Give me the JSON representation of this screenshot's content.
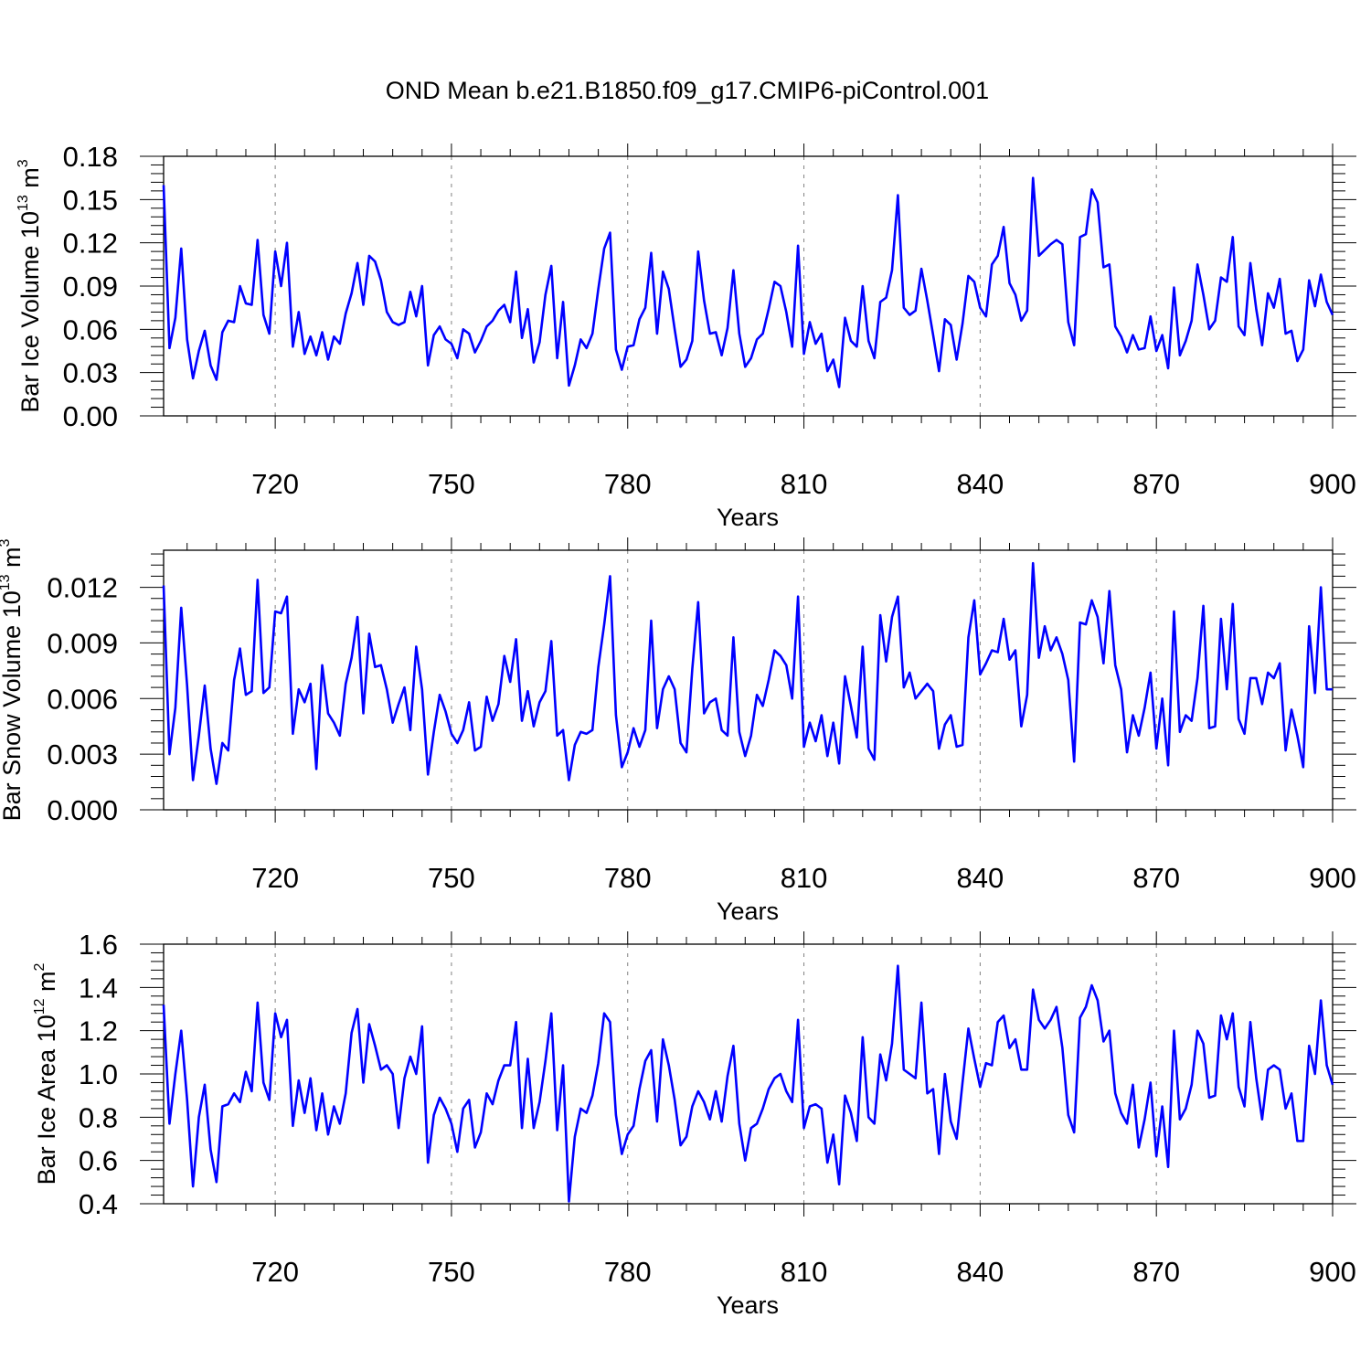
{
  "chart_data": {
    "title": "OND Mean b.e21.B1850.f09_g17.CMIP6-piControl.001",
    "type": "line",
    "line_color": "#0000ff",
    "grid_color": "#808080",
    "x_start_year": 701,
    "x_end_year": 900,
    "x_step": 1,
    "xlim": [
      701,
      900
    ],
    "x_ticks": [
      720,
      750,
      780,
      810,
      840,
      870,
      900
    ],
    "x_tick_labels": [
      "720",
      "750",
      "780",
      "810",
      "840",
      "870",
      "900"
    ],
    "panels": [
      {
        "name": "ice-volume",
        "ylabel": "Bar Ice Volume",
        "yunit_base": "10",
        "yunit_exp": "13",
        "yunit_sym": "m",
        "yunit_sym_exp": "3",
        "ylim": [
          0,
          0.18
        ],
        "y_ticks": [
          0,
          0.03,
          0.06,
          0.09,
          0.12,
          0.15,
          0.18
        ],
        "y_tick_labels": [
          "0.00",
          "0.03",
          "0.06",
          "0.09",
          "0.12",
          "0.15",
          "0.18"
        ],
        "xlabel": "Years",
        "values": [
          0.16,
          0.047,
          0.068,
          0.116,
          0.053,
          0.026,
          0.045,
          0.059,
          0.035,
          0.025,
          0.058,
          0.066,
          0.065,
          0.09,
          0.078,
          0.077,
          0.122,
          0.07,
          0.057,
          0.114,
          0.09,
          0.12,
          0.048,
          0.072,
          0.043,
          0.055,
          0.042,
          0.058,
          0.039,
          0.055,
          0.05,
          0.071,
          0.085,
          0.106,
          0.077,
          0.111,
          0.107,
          0.094,
          0.072,
          0.065,
          0.063,
          0.065,
          0.086,
          0.069,
          0.09,
          0.035,
          0.056,
          0.062,
          0.053,
          0.05,
          0.04,
          0.06,
          0.057,
          0.044,
          0.052,
          0.062,
          0.066,
          0.073,
          0.077,
          0.065,
          0.1,
          0.054,
          0.074,
          0.037,
          0.051,
          0.084,
          0.104,
          0.04,
          0.079,
          0.021,
          0.035,
          0.053,
          0.047,
          0.057,
          0.088,
          0.116,
          0.127,
          0.046,
          0.032,
          0.048,
          0.049,
          0.067,
          0.075,
          0.113,
          0.057,
          0.1,
          0.088,
          0.06,
          0.034,
          0.039,
          0.052,
          0.114,
          0.08,
          0.057,
          0.058,
          0.042,
          0.061,
          0.101,
          0.057,
          0.034,
          0.04,
          0.053,
          0.057,
          0.074,
          0.093,
          0.09,
          0.072,
          0.048,
          0.118,
          0.043,
          0.065,
          0.05,
          0.057,
          0.031,
          0.039,
          0.02,
          0.068,
          0.052,
          0.048,
          0.09,
          0.052,
          0.04,
          0.079,
          0.082,
          0.101,
          0.153,
          0.075,
          0.07,
          0.073,
          0.102,
          0.08,
          0.056,
          0.031,
          0.067,
          0.063,
          0.039,
          0.064,
          0.097,
          0.093,
          0.075,
          0.069,
          0.105,
          0.111,
          0.131,
          0.092,
          0.084,
          0.066,
          0.073,
          0.165,
          0.111,
          0.115,
          0.119,
          0.122,
          0.119,
          0.065,
          0.049,
          0.124,
          0.126,
          0.157,
          0.148,
          0.103,
          0.105,
          0.062,
          0.055,
          0.044,
          0.056,
          0.046,
          0.047,
          0.069,
          0.045,
          0.056,
          0.033,
          0.089,
          0.042,
          0.052,
          0.066,
          0.105,
          0.084,
          0.06,
          0.066,
          0.096,
          0.093,
          0.124,
          0.062,
          0.056,
          0.106,
          0.074,
          0.049,
          0.085,
          0.075,
          0.095,
          0.057,
          0.059,
          0.038,
          0.046,
          0.094,
          0.076,
          0.098,
          0.079,
          0.07
        ]
      },
      {
        "name": "snow-volume",
        "ylabel": "Bar Snow Volume",
        "yunit_base": "10",
        "yunit_exp": "13",
        "yunit_sym": "m",
        "yunit_sym_exp": "3",
        "ylim": [
          0,
          0.014
        ],
        "y_ticks": [
          0,
          0.003,
          0.006,
          0.009,
          0.012
        ],
        "y_tick_labels": [
          "0.000",
          "0.003",
          "0.006",
          "0.009",
          "0.012"
        ],
        "xlabel": "Years",
        "values": [
          0.0121,
          0.003,
          0.0055,
          0.0109,
          0.0067,
          0.0016,
          0.004,
          0.0067,
          0.0033,
          0.0014,
          0.0036,
          0.0032,
          0.007,
          0.0087,
          0.0062,
          0.0064,
          0.0124,
          0.0063,
          0.0066,
          0.0107,
          0.0106,
          0.0115,
          0.0041,
          0.0065,
          0.0058,
          0.0068,
          0.0022,
          0.0078,
          0.0052,
          0.0047,
          0.004,
          0.0068,
          0.0082,
          0.0104,
          0.0052,
          0.0095,
          0.0077,
          0.0078,
          0.0065,
          0.0047,
          0.0057,
          0.0066,
          0.0043,
          0.0088,
          0.0065,
          0.0019,
          0.0042,
          0.0062,
          0.0053,
          0.0041,
          0.0036,
          0.0043,
          0.0058,
          0.0032,
          0.0034,
          0.0061,
          0.0048,
          0.0057,
          0.0083,
          0.0069,
          0.0092,
          0.0048,
          0.0064,
          0.0045,
          0.0058,
          0.0064,
          0.0091,
          0.004,
          0.0043,
          0.0016,
          0.0035,
          0.0042,
          0.0041,
          0.0043,
          0.0077,
          0.01,
          0.0126,
          0.0051,
          0.0023,
          0.0031,
          0.0044,
          0.0034,
          0.0043,
          0.0102,
          0.0044,
          0.0065,
          0.0072,
          0.0065,
          0.0036,
          0.0031,
          0.0076,
          0.0112,
          0.0052,
          0.0058,
          0.006,
          0.0043,
          0.004,
          0.0093,
          0.0042,
          0.0029,
          0.004,
          0.0062,
          0.0056,
          0.007,
          0.0086,
          0.0083,
          0.0078,
          0.006,
          0.0115,
          0.0034,
          0.0047,
          0.0037,
          0.0051,
          0.0029,
          0.0047,
          0.0025,
          0.0072,
          0.0056,
          0.0039,
          0.0088,
          0.0033,
          0.0027,
          0.0105,
          0.008,
          0.0104,
          0.0115,
          0.0066,
          0.0074,
          0.006,
          0.0064,
          0.0068,
          0.0064,
          0.0033,
          0.0046,
          0.0051,
          0.0034,
          0.0035,
          0.0093,
          0.0113,
          0.0073,
          0.0079,
          0.0086,
          0.0085,
          0.0103,
          0.0081,
          0.0086,
          0.0045,
          0.0062,
          0.0133,
          0.0082,
          0.0099,
          0.0086,
          0.0093,
          0.0084,
          0.007,
          0.0026,
          0.0101,
          0.01,
          0.0113,
          0.0104,
          0.0079,
          0.0118,
          0.0078,
          0.0065,
          0.0031,
          0.0051,
          0.004,
          0.0055,
          0.0074,
          0.0033,
          0.006,
          0.0024,
          0.0107,
          0.0042,
          0.0051,
          0.0048,
          0.0071,
          0.011,
          0.0044,
          0.0045,
          0.0103,
          0.0065,
          0.0111,
          0.0049,
          0.0041,
          0.0071,
          0.0071,
          0.0057,
          0.0074,
          0.0071,
          0.0079,
          0.0032,
          0.0054,
          0.004,
          0.0023,
          0.0099,
          0.0063,
          0.012,
          0.0065,
          0.0065
        ]
      },
      {
        "name": "ice-area",
        "ylabel": "Bar Ice Area",
        "yunit_base": "10",
        "yunit_exp": "12",
        "yunit_sym": "m",
        "yunit_sym_exp": "2",
        "ylim": [
          0.4,
          1.6
        ],
        "y_ticks": [
          0.4,
          0.6,
          0.8,
          1.0,
          1.2,
          1.4,
          1.6
        ],
        "y_tick_labels": [
          "0.4",
          "0.6",
          "0.8",
          "1.0",
          "1.2",
          "1.4",
          "1.6"
        ],
        "xlabel": "Years",
        "values": [
          1.32,
          0.77,
          1.0,
          1.2,
          0.88,
          0.48,
          0.8,
          0.95,
          0.65,
          0.5,
          0.85,
          0.86,
          0.91,
          0.87,
          1.01,
          0.92,
          1.33,
          0.96,
          0.88,
          1.28,
          1.17,
          1.25,
          0.76,
          0.97,
          0.82,
          0.98,
          0.74,
          0.91,
          0.72,
          0.85,
          0.77,
          0.91,
          1.19,
          1.3,
          0.96,
          1.23,
          1.13,
          1.02,
          1.04,
          1.0,
          0.75,
          0.98,
          1.08,
          1.0,
          1.22,
          0.59,
          0.81,
          0.89,
          0.84,
          0.77,
          0.64,
          0.84,
          0.88,
          0.66,
          0.73,
          0.91,
          0.86,
          0.97,
          1.04,
          1.04,
          1.24,
          0.75,
          1.07,
          0.75,
          0.87,
          1.06,
          1.28,
          0.74,
          1.04,
          0.41,
          0.71,
          0.84,
          0.82,
          0.9,
          1.05,
          1.28,
          1.24,
          0.81,
          0.63,
          0.72,
          0.76,
          0.93,
          1.06,
          1.11,
          0.78,
          1.16,
          1.04,
          0.88,
          0.67,
          0.71,
          0.85,
          0.92,
          0.87,
          0.79,
          0.92,
          0.78,
          0.99,
          1.13,
          0.77,
          0.6,
          0.75,
          0.77,
          0.84,
          0.93,
          0.98,
          1.0,
          0.92,
          0.87,
          1.25,
          0.75,
          0.85,
          0.86,
          0.84,
          0.59,
          0.72,
          0.49,
          0.9,
          0.82,
          0.69,
          1.17,
          0.8,
          0.77,
          1.09,
          0.97,
          1.14,
          1.5,
          1.02,
          1.0,
          0.98,
          1.33,
          0.91,
          0.93,
          0.63,
          1.0,
          0.78,
          0.7,
          0.96,
          1.21,
          1.07,
          0.94,
          1.05,
          1.04,
          1.24,
          1.27,
          1.12,
          1.16,
          1.02,
          1.02,
          1.39,
          1.25,
          1.21,
          1.25,
          1.31,
          1.12,
          0.81,
          0.73,
          1.26,
          1.31,
          1.41,
          1.34,
          1.15,
          1.2,
          0.91,
          0.82,
          0.77,
          0.95,
          0.66,
          0.79,
          0.96,
          0.62,
          0.85,
          0.57,
          1.2,
          0.79,
          0.84,
          0.95,
          1.2,
          1.14,
          0.89,
          0.9,
          1.27,
          1.16,
          1.28,
          0.94,
          0.85,
          1.24,
          0.98,
          0.79,
          1.02,
          1.04,
          1.02,
          0.84,
          0.91,
          0.69,
          0.69,
          1.13,
          1.0,
          1.34,
          1.04,
          0.95
        ]
      }
    ]
  }
}
